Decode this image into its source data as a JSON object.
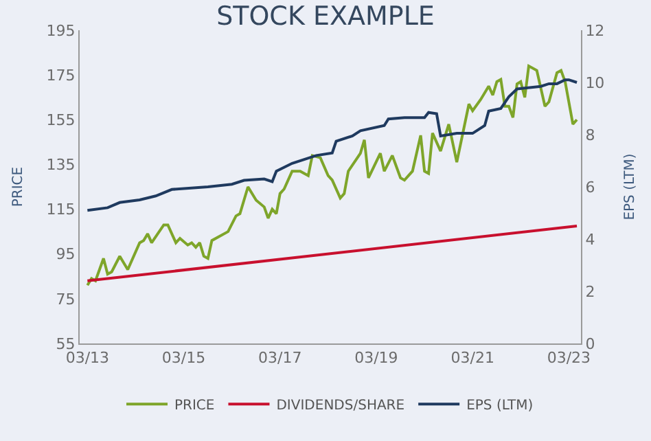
{
  "chart_data": {
    "type": "line",
    "title": "STOCK EXAMPLE",
    "ylabel": "PRICE",
    "y2label": "EPS (LTM)",
    "xlim": [
      "2013-01",
      "2023-06"
    ],
    "xticks": [
      {
        "value": "2013-03",
        "label": "03/13"
      },
      {
        "value": "2015-03",
        "label": "03/15"
      },
      {
        "value": "2017-03",
        "label": "03/17"
      },
      {
        "value": "2019-03",
        "label": "03/19"
      },
      {
        "value": "2021-03",
        "label": "03/21"
      },
      {
        "value": "2023-03",
        "label": "03/23"
      }
    ],
    "ylim": [
      55,
      195
    ],
    "yticks": [
      55,
      75,
      95,
      115,
      135,
      155,
      175,
      195
    ],
    "y2lim": [
      0,
      12
    ],
    "y2ticks": [
      0,
      2,
      4,
      6,
      8,
      10,
      12
    ],
    "grid": false,
    "legend": "bottom",
    "marker": "none",
    "line_style": "solid",
    "series": [
      {
        "name": "PRICE",
        "color": "#7ea52a",
        "x": [
          "2013-03",
          "2013-04",
          "2013-05",
          "2013-07",
          "2013-08",
          "2013-09",
          "2013-11",
          "2014-01",
          "2014-04",
          "2014-05",
          "2014-06",
          "2014-07",
          "2014-10",
          "2014-11",
          "2015-01",
          "2015-02",
          "2015-04",
          "2015-05",
          "2015-06",
          "2015-07",
          "2015-08",
          "2015-09",
          "2015-10",
          "2016-02",
          "2016-04",
          "2016-05",
          "2016-07",
          "2016-09",
          "2016-11",
          "2016-12",
          "2017-01",
          "2017-02",
          "2017-03",
          "2017-04",
          "2017-06",
          "2017-08",
          "2017-10",
          "2017-11",
          "2018-01",
          "2018-03",
          "2018-04",
          "2018-06",
          "2018-07",
          "2018-08",
          "2018-11",
          "2018-12",
          "2019-01",
          "2019-04",
          "2019-05",
          "2019-07",
          "2019-09",
          "2019-10",
          "2019-12",
          "2020-02",
          "2020-03",
          "2020-04",
          "2020-05",
          "2020-07",
          "2020-09",
          "2020-11",
          "2021-02",
          "2021-03",
          "2021-05",
          "2021-07",
          "2021-08",
          "2021-09",
          "2021-10",
          "2021-11",
          "2021-12",
          "2022-01",
          "2022-02",
          "2022-03",
          "2022-04",
          "2022-05",
          "2022-07",
          "2022-09",
          "2022-10",
          "2022-12",
          "2023-01",
          "2023-02",
          "2023-04",
          "2023-05"
        ],
        "values": [
          81,
          84,
          83,
          93,
          86,
          87,
          94,
          88,
          100,
          101,
          104,
          100,
          108,
          108,
          100,
          102,
          99,
          100,
          98,
          100,
          94,
          93,
          101,
          105,
          112,
          113,
          125,
          119,
          116,
          111,
          115,
          113,
          122,
          124,
          132,
          132,
          130,
          139,
          138,
          130,
          128,
          120,
          122,
          132,
          140,
          146,
          129,
          140,
          132,
          139,
          129,
          128,
          132,
          148,
          132,
          131,
          149,
          141,
          153,
          136,
          162,
          159,
          164,
          170,
          166,
          172,
          173,
          161,
          161,
          156,
          171,
          172,
          165,
          179,
          177,
          161,
          163,
          176,
          177,
          172,
          153,
          155
        ]
      },
      {
        "name": "DIVIDENDS/SHARE",
        "color": "#c8102e",
        "axis": "y2",
        "x": [
          "2013-03",
          "2023-05"
        ],
        "values": [
          2.4,
          4.5
        ]
      },
      {
        "name": "EPS (LTM)",
        "color": "#1f3a5f",
        "axis": "y2",
        "x": [
          "2013-03",
          "2013-08",
          "2013-11",
          "2014-04",
          "2014-08",
          "2014-12",
          "2015-09",
          "2016-03",
          "2016-06",
          "2016-11",
          "2017-01",
          "2017-02",
          "2017-06",
          "2017-12",
          "2018-04",
          "2018-05",
          "2018-09",
          "2018-11",
          "2019-05",
          "2019-06",
          "2019-10",
          "2020-03",
          "2020-04",
          "2020-06",
          "2020-07",
          "2020-11",
          "2021-03",
          "2021-06",
          "2021-07",
          "2021-10",
          "2021-12",
          "2022-02",
          "2022-08",
          "2022-10",
          "2022-12",
          "2023-02",
          "2023-03",
          "2023-05"
        ],
        "values": [
          5.1,
          5.2,
          5.4,
          5.5,
          5.65,
          5.9,
          6.0,
          6.1,
          6.25,
          6.3,
          6.2,
          6.6,
          6.9,
          7.2,
          7.3,
          7.75,
          7.95,
          8.15,
          8.35,
          8.6,
          8.65,
          8.65,
          8.85,
          8.8,
          7.95,
          8.05,
          8.05,
          8.35,
          8.9,
          9.0,
          9.45,
          9.75,
          9.85,
          9.95,
          9.95,
          10.1,
          10.1,
          10.0
        ]
      }
    ]
  }
}
